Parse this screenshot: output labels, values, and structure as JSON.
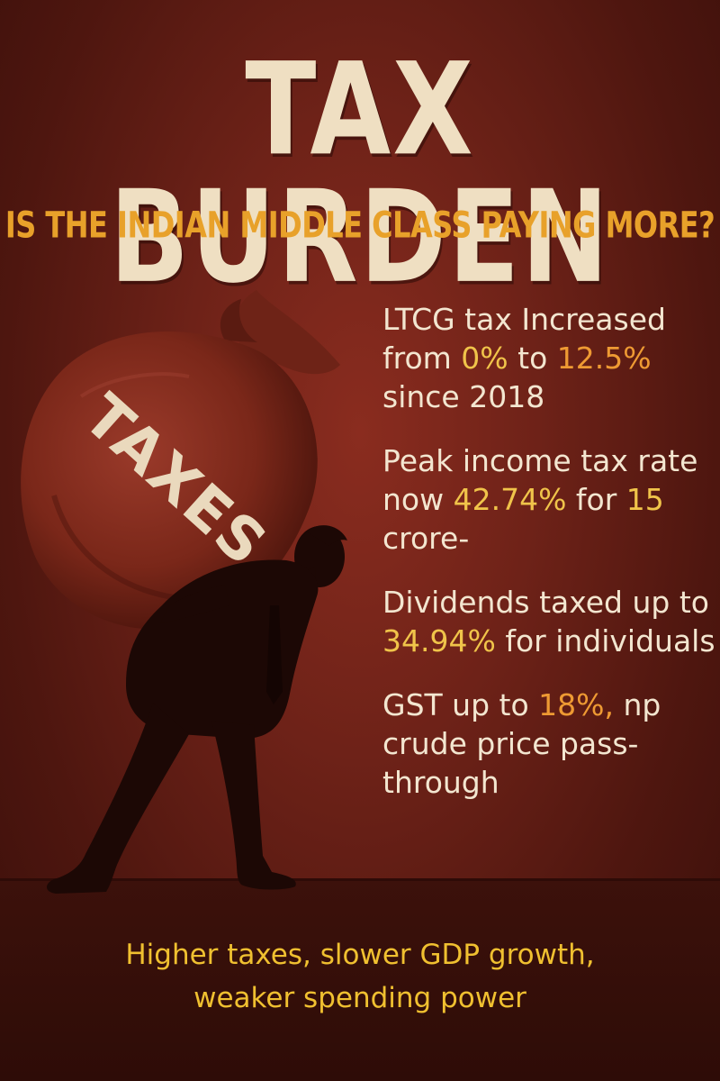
{
  "header": {
    "title": "TAX BURDEN",
    "subtitle": "IS THE INDIAN MIDDLE CLASS PAYING MORE?"
  },
  "illustration": {
    "bag_label": "TAXES",
    "icon": "man-carrying-tax-sack-icon"
  },
  "facts": [
    {
      "t1": "LTCG tax Increased from ",
      "h1": "0%",
      "t2": " to ",
      "h2": "12.5%",
      "t3": " since 2018"
    },
    {
      "t1": "Peak income tax rate now ",
      "h1": "42.74%",
      "t2": " for ",
      "h2": "15",
      "t3": " crore-"
    },
    {
      "t1": "Dividends taxed up to ",
      "h1": "34.94%",
      "t2": " for individuals"
    },
    {
      "t1": "GST up to ",
      "h1": "18%,",
      "t2": " np crude price pass-through"
    }
  ],
  "footer": {
    "line1": "Higher taxes, slower GDP growth,",
    "line2": "weaker spending power"
  },
  "colors": {
    "background": "#6e2218",
    "title": "#efdfc2",
    "subtitle": "#e8a12a",
    "highlight_orange": "#ee9a33",
    "highlight_yellow": "#f0c44a",
    "footer": "#f0c030"
  }
}
